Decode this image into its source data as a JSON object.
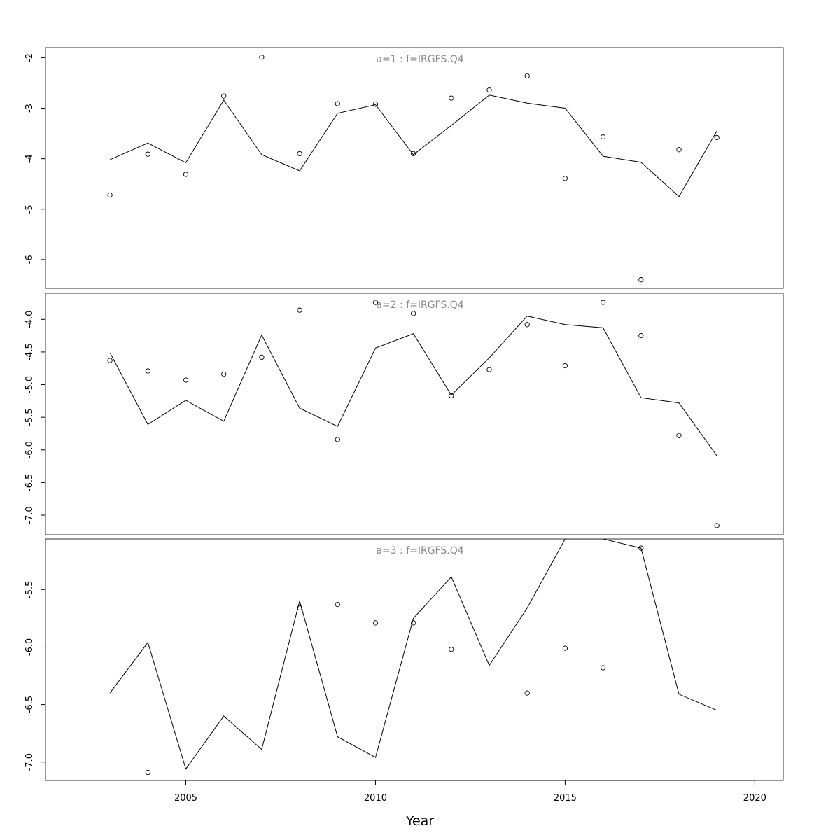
{
  "chart_data": {
    "type": "line",
    "xlabel": "Year",
    "x_ticks": [
      2005,
      2010,
      2015,
      2020
    ],
    "x_range": [
      2001.3,
      2020.75
    ],
    "grid": false,
    "legend": "none",
    "colors": {
      "line": "#000000",
      "points": "#000000",
      "panel_title": "#8a8a8a"
    },
    "x": [
      2003,
      2004,
      2005,
      2006,
      2007,
      2008,
      2009,
      2010,
      2011,
      2012,
      2013,
      2014,
      2015,
      2016,
      2017,
      2018,
      2019
    ],
    "panels": [
      {
        "title": "a=1  :  f=IRGFS.Q4",
        "y_range": [
          -6.57,
          -1.8
        ],
        "y_ticks": [
          -2,
          -3,
          -4,
          -5,
          -6
        ],
        "tick_labels": [
          "-2",
          "-3",
          "-4",
          "-5",
          "-6"
        ],
        "line": [
          -4.02,
          -3.69,
          -4.08,
          -2.84,
          -3.92,
          -4.24,
          -3.1,
          -2.93,
          -3.92,
          -3.34,
          -2.74,
          -2.9,
          -3.0,
          -3.95,
          -4.07,
          -4.75,
          -3.45
        ],
        "points": [
          -4.72,
          -3.91,
          -4.31,
          -2.76,
          -1.99,
          -3.9,
          -2.91,
          -2.92,
          -3.9,
          -2.8,
          -2.64,
          -2.36,
          -4.39,
          -3.57,
          -6.4,
          -3.82,
          -3.58
        ]
      },
      {
        "title": "a=2  :  f=IRGFS.Q4",
        "y_range": [
          -7.3,
          -3.6
        ],
        "y_ticks": [
          -4.0,
          -4.5,
          -5.0,
          -5.5,
          -6.0,
          -6.5,
          -7.0
        ],
        "tick_labels": [
          "-4.0",
          "-4.5",
          "-5.0",
          "-5.5",
          "-6.0",
          "-6.5",
          "-7.0"
        ],
        "line": [
          -4.51,
          -5.61,
          -5.24,
          -5.56,
          -4.24,
          -5.36,
          -5.64,
          -4.44,
          -4.22,
          -5.16,
          -4.59,
          -3.95,
          -4.08,
          -4.13,
          -5.2,
          -5.28,
          -6.09
        ],
        "points": [
          -4.63,
          -4.79,
          -4.93,
          -4.84,
          -4.58,
          -3.86,
          -5.84,
          -3.74,
          -3.91,
          -5.17,
          -4.77,
          -4.08,
          -4.71,
          -3.74,
          -4.25,
          -5.78,
          -7.16
        ]
      },
      {
        "title": "a=3  :  f=IRGFS.Q4",
        "y_range": [
          -7.16,
          -5.06
        ],
        "y_ticks": [
          -5.5,
          -6.0,
          -6.5,
          -7.0
        ],
        "tick_labels": [
          "-5.5",
          "-6.0",
          "-6.5",
          "-7.0"
        ],
        "line": [
          -6.4,
          -5.96,
          -7.06,
          -6.6,
          -6.89,
          -5.6,
          -6.78,
          -6.96,
          -5.75,
          -5.39,
          -6.16,
          -5.66,
          -5.06,
          -5.06,
          -5.14,
          -6.41,
          -6.55
        ],
        "points": [
          null,
          -7.09,
          null,
          null,
          null,
          -5.66,
          -5.63,
          -5.79,
          -5.79,
          -6.02,
          null,
          -6.4,
          -6.01,
          -6.18,
          -5.14,
          null,
          null
        ]
      }
    ]
  }
}
